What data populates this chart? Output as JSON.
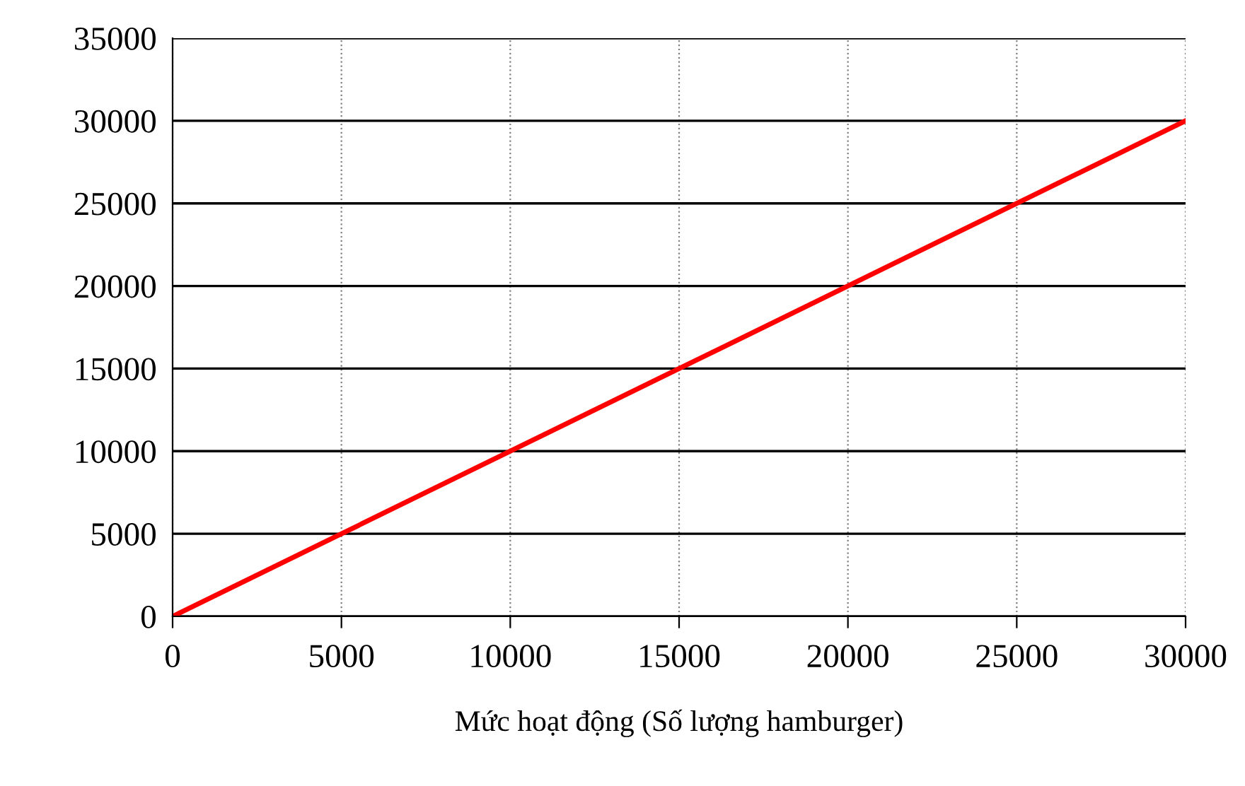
{
  "chart_data": {
    "type": "line",
    "xlabel": "Mức hoạt động (Số lượng hamburger)",
    "x": [
      0,
      30000
    ],
    "series": [
      {
        "color": "#ff0000",
        "values": [
          0,
          30000
        ]
      }
    ],
    "xlim": [
      0,
      30000
    ],
    "xticks": [
      0,
      5000,
      10000,
      15000,
      20000,
      25000,
      30000
    ],
    "ylim": [
      0,
      35000
    ],
    "yticks": [
      0,
      5000,
      10000,
      15000,
      20000,
      25000,
      30000,
      35000
    ],
    "grid": true,
    "marker": "none",
    "line_style": "solid",
    "legend": false
  }
}
